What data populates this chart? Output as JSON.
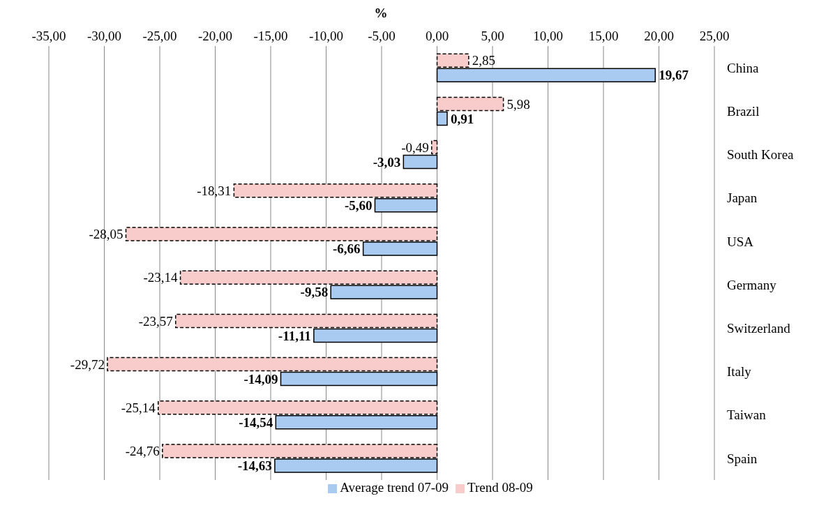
{
  "chart_data": {
    "type": "bar",
    "orientation": "horizontal",
    "xlabel": "%",
    "categories": [
      "China",
      "Brazil",
      "South Korea",
      "Japan",
      "USA",
      "Germany",
      "Switzerland",
      "Italy",
      "Taiwan",
      "Spain"
    ],
    "series": [
      {
        "name": "Trend 08-09",
        "color": "#f9cccc",
        "line_style": "dashed",
        "values": [
          2.85,
          5.98,
          -0.49,
          -18.31,
          -28.05,
          -23.14,
          -23.57,
          -29.72,
          -25.14,
          -24.76
        ],
        "value_labels": [
          "2,85",
          "5,98",
          "-0,49",
          "-18,31",
          "-28,05",
          "-23,14",
          "-23,57",
          "-29,72",
          "-25,14",
          "-24,76"
        ]
      },
      {
        "name": "Average trend 07-09",
        "color": "#a9cbf2",
        "line_style": "solid",
        "values": [
          19.67,
          0.91,
          -3.03,
          -5.6,
          -6.66,
          -9.58,
          -11.11,
          -14.09,
          -14.54,
          -14.63
        ],
        "value_labels": [
          "19,67",
          "0,91",
          "-3,03",
          "-5,60",
          "-6,66",
          "-9,58",
          "-11,11",
          "-14,09",
          "-14,54",
          "-14,63"
        ]
      }
    ],
    "xlim": [
      -35,
      25
    ],
    "xticks": [
      {
        "value": -35,
        "label": "-35,00"
      },
      {
        "value": -30,
        "label": "-30,00"
      },
      {
        "value": -25,
        "label": "-25,00"
      },
      {
        "value": -20,
        "label": "-20,00"
      },
      {
        "value": -15,
        "label": "-15,00"
      },
      {
        "value": -10,
        "label": "-10,00"
      },
      {
        "value": -5,
        "label": "-5,00"
      },
      {
        "value": 0,
        "label": "0,00"
      },
      {
        "value": 5,
        "label": "5,00"
      },
      {
        "value": 10,
        "label": "10,00"
      },
      {
        "value": 15,
        "label": "15,00"
      },
      {
        "value": 20,
        "label": "20,00"
      },
      {
        "value": 25,
        "label": "25,00"
      }
    ],
    "grid": "x",
    "legend": "bottom"
  }
}
